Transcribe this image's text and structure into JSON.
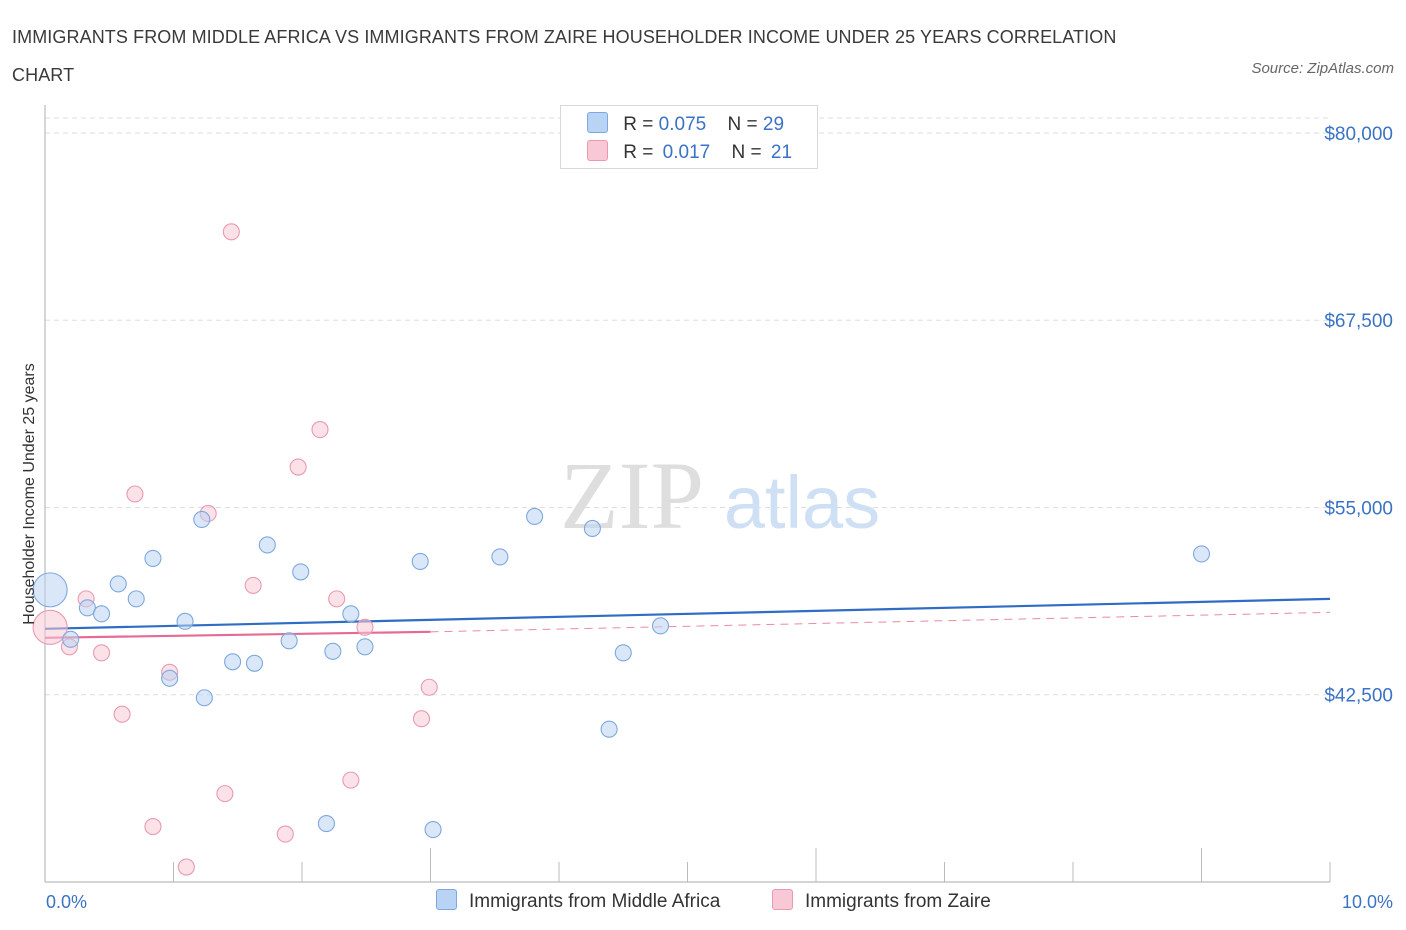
{
  "title": "IMMIGRANTS FROM MIDDLE AFRICA VS IMMIGRANTS FROM ZAIRE HOUSEHOLDER INCOME UNDER 25 YEARS CORRELATION CHART",
  "source": "Source: ZipAtlas.com",
  "watermark": {
    "zip": "ZIP",
    "atlas": "atlas"
  },
  "legend": {
    "rows": [
      {
        "r_label": "R =",
        "r_value": "0.075",
        "n_label": "N =",
        "n_value": "29"
      },
      {
        "r_label": "R =",
        "r_value": "0.017",
        "n_label": "N =",
        "n_value": "21"
      }
    ]
  },
  "colors": {
    "blue_fill": "#b9d3f4",
    "blue_stroke": "#7ea8dd",
    "blue_line": "#2f6cc4",
    "pink_fill": "#f8c8d6",
    "pink_stroke": "#e99ab1",
    "pink_line": "#e56b95",
    "tick_text": "#3a72c4",
    "grid": "#dddddd"
  },
  "chart_data": {
    "type": "scatter",
    "title": "IMMIGRANTS FROM MIDDLE AFRICA VS IMMIGRANTS FROM ZAIRE HOUSEHOLDER INCOME UNDER 25 YEARS CORRELATION CHART",
    "xlabel": "",
    "ylabel": "Householder Income Under 25 years",
    "xlim": [
      0,
      10
    ],
    "ylim": [
      30000,
      81000
    ],
    "x_tick_labels": [
      "0.0%",
      "10.0%"
    ],
    "y_ticks": [
      42500,
      55000,
      67500,
      80000
    ],
    "y_tick_labels": [
      "$42,500",
      "$55,000",
      "$67,500",
      "$80,000"
    ],
    "grid": true,
    "legend_position": "top-center",
    "series": [
      {
        "name": "Immigrants from Middle Africa",
        "color": "#b9d3f4",
        "points": [
          {
            "x": 0.04,
            "y": 49500,
            "size": "large"
          },
          {
            "x": 0.2,
            "y": 46200
          },
          {
            "x": 0.33,
            "y": 48300
          },
          {
            "x": 0.44,
            "y": 47900
          },
          {
            "x": 0.57,
            "y": 49900
          },
          {
            "x": 0.71,
            "y": 48900
          },
          {
            "x": 0.84,
            "y": 51600
          },
          {
            "x": 0.97,
            "y": 43600
          },
          {
            "x": 1.09,
            "y": 47400
          },
          {
            "x": 1.24,
            "y": 42300
          },
          {
            "x": 1.22,
            "y": 54200
          },
          {
            "x": 1.46,
            "y": 44700
          },
          {
            "x": 1.63,
            "y": 44600
          },
          {
            "x": 1.73,
            "y": 52500
          },
          {
            "x": 1.9,
            "y": 46100
          },
          {
            "x": 1.99,
            "y": 50700
          },
          {
            "x": 2.19,
            "y": 33900
          },
          {
            "x": 2.24,
            "y": 45400
          },
          {
            "x": 2.38,
            "y": 47900
          },
          {
            "x": 2.49,
            "y": 45700
          },
          {
            "x": 2.92,
            "y": 51400
          },
          {
            "x": 3.02,
            "y": 33500
          },
          {
            "x": 3.54,
            "y": 51700
          },
          {
            "x": 3.81,
            "y": 54400
          },
          {
            "x": 4.26,
            "y": 53600
          },
          {
            "x": 4.39,
            "y": 40200
          },
          {
            "x": 4.5,
            "y": 45300
          },
          {
            "x": 4.79,
            "y": 47100
          },
          {
            "x": 9.0,
            "y": 51900
          }
        ],
        "trend": {
          "x0": 0,
          "y0": 46900,
          "x1": 10,
          "y1": 48900
        }
      },
      {
        "name": "Immigrants from Zaire",
        "color": "#f8c8d6",
        "points": [
          {
            "x": 0.04,
            "y": 47000,
            "size": "large"
          },
          {
            "x": 0.19,
            "y": 45700
          },
          {
            "x": 0.32,
            "y": 48900
          },
          {
            "x": 0.44,
            "y": 45300
          },
          {
            "x": 0.6,
            "y": 41200
          },
          {
            "x": 0.7,
            "y": 55900
          },
          {
            "x": 0.84,
            "y": 33700
          },
          {
            "x": 0.97,
            "y": 44000
          },
          {
            "x": 1.1,
            "y": 31000
          },
          {
            "x": 1.27,
            "y": 54600
          },
          {
            "x": 1.4,
            "y": 35900
          },
          {
            "x": 1.45,
            "y": 73400
          },
          {
            "x": 1.62,
            "y": 49800
          },
          {
            "x": 1.87,
            "y": 33200
          },
          {
            "x": 1.97,
            "y": 57700
          },
          {
            "x": 2.14,
            "y": 60200
          },
          {
            "x": 2.27,
            "y": 48900
          },
          {
            "x": 2.38,
            "y": 36800
          },
          {
            "x": 2.49,
            "y": 47000
          },
          {
            "x": 2.93,
            "y": 40900
          },
          {
            "x": 2.99,
            "y": 43000
          }
        ],
        "trend": {
          "x0": 0,
          "y0": 46300,
          "x1": 3.0,
          "y1": 46700
        },
        "trend_extension": {
          "x0": 3.0,
          "y0": 46700,
          "x1": 10,
          "y1": 48000
        }
      }
    ]
  }
}
